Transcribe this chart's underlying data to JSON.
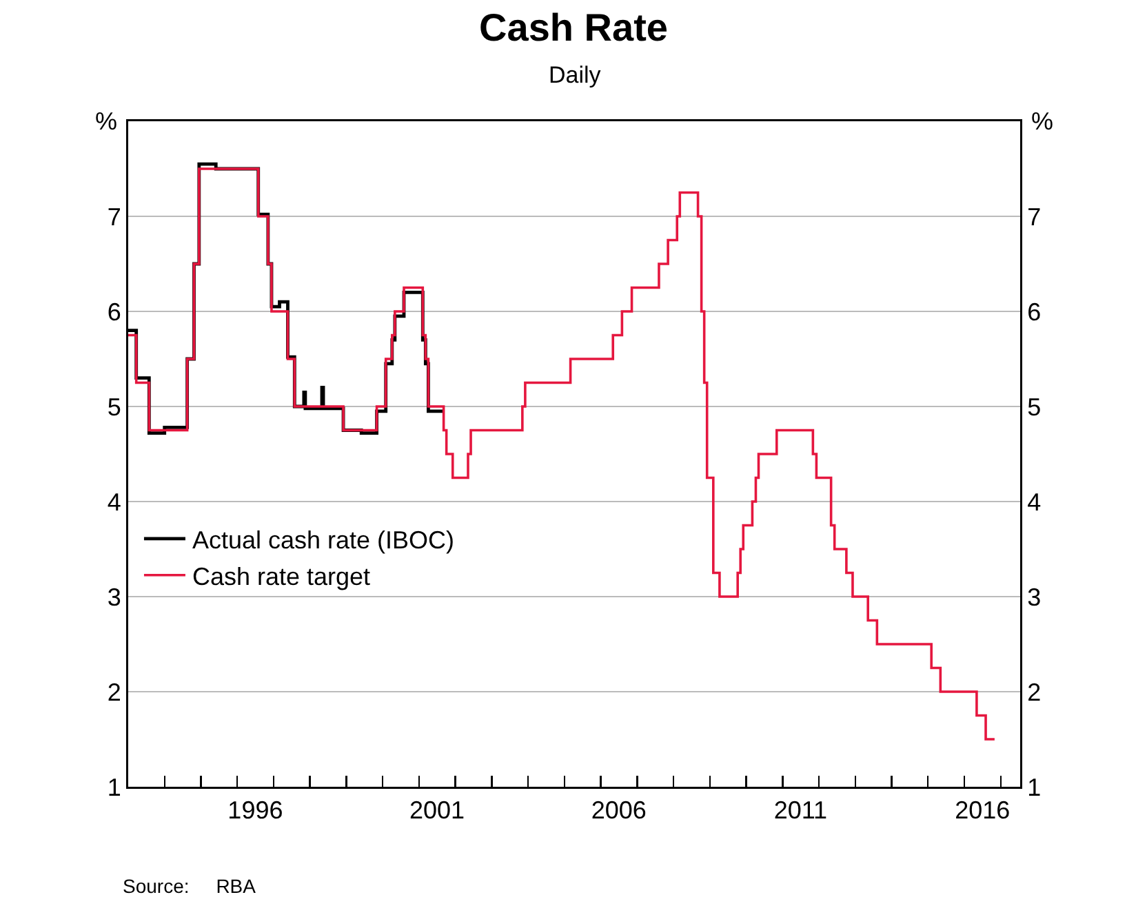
{
  "chart_data": {
    "type": "step",
    "title": "Cash Rate",
    "subtitle": "Daily",
    "ylabel": "%",
    "y2label": "%",
    "annotations": [
      "Source:     RBA"
    ],
    "xlim": [
      "1993-01-01",
      "2017-07-15"
    ],
    "xticks": [
      {
        "value": "1994-01-01",
        "label": null
      },
      {
        "value": "1995-01-01",
        "label": null
      },
      {
        "value": "1996-01-01",
        "label": null
      },
      {
        "value": "1997-01-01",
        "label": null
      },
      {
        "value": "1998-01-01",
        "label": null
      },
      {
        "value": "1999-01-01",
        "label": null
      },
      {
        "value": "2000-01-01",
        "label": null
      },
      {
        "value": "2001-01-01",
        "label": null
      },
      {
        "value": "2002-01-01",
        "label": null
      },
      {
        "value": "2003-01-01",
        "label": null
      },
      {
        "value": "2004-01-01",
        "label": null
      },
      {
        "value": "2005-01-01",
        "label": null
      },
      {
        "value": "2006-01-01",
        "label": null
      },
      {
        "value": "2007-01-01",
        "label": null
      },
      {
        "value": "2008-01-01",
        "label": null
      },
      {
        "value": "2009-01-01",
        "label": null
      },
      {
        "value": "2010-01-01",
        "label": null
      },
      {
        "value": "2011-01-01",
        "label": null
      },
      {
        "value": "2012-01-01",
        "label": null
      },
      {
        "value": "2013-01-01",
        "label": null
      },
      {
        "value": "2014-01-01",
        "label": null
      },
      {
        "value": "2015-01-01",
        "label": null
      },
      {
        "value": "2016-01-01",
        "label": null
      },
      {
        "value": "2017-01-01",
        "label": null
      },
      {
        "value": "1996-07-01",
        "label": "1996"
      },
      {
        "value": "2001-07-01",
        "label": "2001"
      },
      {
        "value": "2006-07-01",
        "label": "2006"
      },
      {
        "value": "2011-07-01",
        "label": "2011"
      },
      {
        "value": "2016-07-01",
        "label": "2016"
      }
    ],
    "ylim": [
      1,
      8
    ],
    "yticks": [
      1,
      2,
      3,
      4,
      5,
      6,
      7
    ],
    "y2lim": [
      1,
      8
    ],
    "y2ticks": [
      1,
      2,
      3,
      4,
      5,
      6,
      7
    ],
    "grid": "y",
    "legend": "bottom left",
    "line_style": "solid",
    "marker": "none",
    "series": [
      {
        "name": "Actual cash rate (IBOC)",
        "color": "#000000",
        "x": [
          "1993-01-01",
          "1993-03-23",
          "1993-07-30",
          "1994-01-01",
          "1994-08-17",
          "1994-10-24",
          "1994-12-14",
          "1995-06-01",
          "1996-07-31",
          "1996-11-06",
          "1996-12-11",
          "1997-03-01",
          "1997-05-23",
          "1997-07-30",
          "1997-11-01",
          "1997-11-15",
          "1998-05-01",
          "1998-05-15",
          "1998-12-02",
          "1999-06-01",
          "1999-11-03",
          "2000-02-02",
          "2000-04-05",
          "2000-05-03",
          "2000-08-02",
          "2001-02-07",
          "2001-03-07",
          "2001-04-04",
          "2001-09-05"
        ],
        "values": [
          5.8,
          5.3,
          4.72,
          4.78,
          5.5,
          6.5,
          7.55,
          7.5,
          7.02,
          6.5,
          6.05,
          6.1,
          5.52,
          5.0,
          5.15,
          4.98,
          5.2,
          4.98,
          4.75,
          4.72,
          4.95,
          5.45,
          5.7,
          5.95,
          6.2,
          5.7,
          5.45,
          4.95,
          4.95
        ]
      },
      {
        "name": "Cash rate target",
        "color": "#e5173f",
        "x": [
          "1993-01-01",
          "1993-03-23",
          "1993-07-30",
          "1994-08-17",
          "1994-10-24",
          "1994-12-14",
          "1996-07-31",
          "1996-11-06",
          "1996-12-11",
          "1997-05-23",
          "1997-07-30",
          "1998-12-02",
          "1999-11-03",
          "2000-02-02",
          "2000-04-05",
          "2000-05-03",
          "2000-08-02",
          "2001-02-07",
          "2001-03-07",
          "2001-04-04",
          "2001-09-05",
          "2001-10-03",
          "2001-12-05",
          "2002-05-08",
          "2002-06-05",
          "2003-11-05",
          "2003-12-03",
          "2005-03-02",
          "2006-05-03",
          "2006-08-02",
          "2006-11-08",
          "2007-08-08",
          "2007-11-07",
          "2008-02-06",
          "2008-03-05",
          "2008-09-03",
          "2008-10-08",
          "2008-11-05",
          "2008-12-03",
          "2009-02-04",
          "2009-04-08",
          "2009-10-07",
          "2009-11-04",
          "2009-12-02",
          "2010-03-03",
          "2010-04-07",
          "2010-05-05",
          "2010-11-03",
          "2011-11-02",
          "2011-12-07",
          "2012-05-02",
          "2012-06-06",
          "2012-10-03",
          "2012-12-05",
          "2013-05-08",
          "2013-08-07",
          "2015-02-04",
          "2015-05-06",
          "2016-05-04",
          "2016-08-03",
          "2016-10-31"
        ],
        "values": [
          5.75,
          5.25,
          4.75,
          5.5,
          6.5,
          7.5,
          7.0,
          6.5,
          6.0,
          5.5,
          5.0,
          4.75,
          5.0,
          5.5,
          5.75,
          6.0,
          6.25,
          5.75,
          5.5,
          5.0,
          4.75,
          4.5,
          4.25,
          4.5,
          4.75,
          5.0,
          5.25,
          5.5,
          5.75,
          6.0,
          6.25,
          6.5,
          6.75,
          7.0,
          7.25,
          7.0,
          6.0,
          5.25,
          4.25,
          3.25,
          3.0,
          3.25,
          3.5,
          3.75,
          4.0,
          4.25,
          4.5,
          4.75,
          4.5,
          4.25,
          3.75,
          3.5,
          3.25,
          3.0,
          2.75,
          2.5,
          2.25,
          2.0,
          1.75,
          1.5,
          1.5
        ]
      }
    ]
  }
}
